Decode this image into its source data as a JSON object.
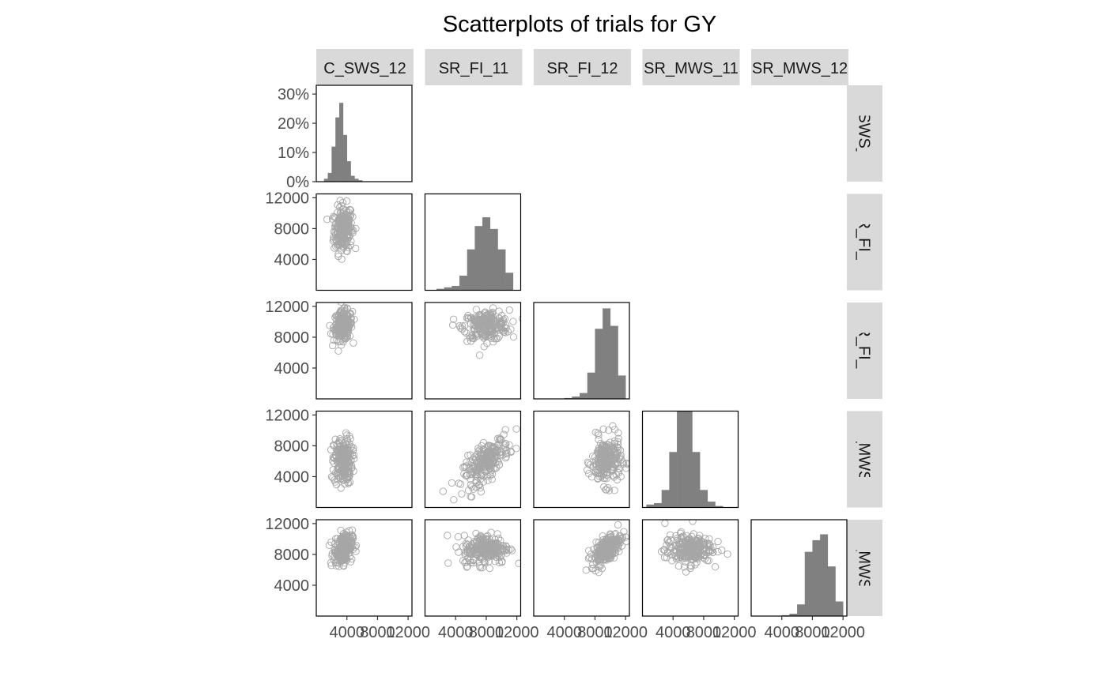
{
  "chart_data": {
    "type": "scatter",
    "title": "Scatterplots of trials for GY",
    "trials": [
      "C_SWS_12",
      "SR_FI_11",
      "SR_FI_12",
      "SR_MWS_11",
      "SR_MWS_12"
    ],
    "x_tick_labels": [
      "4000",
      "8000",
      "12000"
    ],
    "y_tick_labels": [
      "4000",
      "8000",
      "12000"
    ],
    "hist_y_tick_labels": [
      "0%",
      "10%",
      "20%",
      "30%"
    ],
    "xlim": [
      0,
      12500
    ],
    "ylim": [
      0,
      12500
    ],
    "hist_ylim": [
      0,
      0.33
    ],
    "grid": false,
    "point_color": "#a6a6a6",
    "hist_color": "#808080",
    "strip_color": "#d9d9d9",
    "distributions": [
      {
        "trial": "C_SWS_12",
        "mean": 3500,
        "sd": 600
      },
      {
        "trial": "SR_FI_11",
        "mean": 8000,
        "sd": 1500
      },
      {
        "trial": "SR_FI_12",
        "mean": 9500,
        "sd": 950
      },
      {
        "trial": "SR_MWS_11",
        "mean": 6000,
        "sd": 1550
      },
      {
        "trial": "SR_MWS_12",
        "mean": 8700,
        "sd": 1000
      }
    ],
    "histograms": [
      {
        "trial": "C_SWS_12",
        "bins": [
          1250,
          1750,
          2250,
          2750,
          3250,
          3750,
          4250,
          4750,
          5250,
          5750
        ],
        "share": [
          0.01,
          0.03,
          0.12,
          0.22,
          0.27,
          0.16,
          0.07,
          0.02,
          0.01,
          0.005
        ]
      },
      {
        "trial": "SR_FI_11",
        "bins": [
          2000,
          3000,
          4000,
          5000,
          6000,
          7000,
          8000,
          9000,
          10000,
          11000
        ],
        "share": [
          0.005,
          0.01,
          0.015,
          0.05,
          0.14,
          0.22,
          0.25,
          0.21,
          0.14,
          0.06
        ]
      },
      {
        "trial": "SR_FI_12",
        "bins": [
          4500,
          5500,
          6500,
          7500,
          8500,
          9500,
          10500,
          11500
        ],
        "share": [
          0.003,
          0.008,
          0.02,
          0.09,
          0.24,
          0.31,
          0.25,
          0.08
        ]
      },
      {
        "trial": "SR_MWS_11",
        "bins": [
          1000,
          2000,
          3000,
          4000,
          5000,
          6000,
          7000,
          8000,
          9000,
          10000
        ],
        "share": [
          0.01,
          0.015,
          0.06,
          0.19,
          0.36,
          0.37,
          0.19,
          0.06,
          0.02,
          0.005
        ]
      },
      {
        "trial": "SR_MWS_12",
        "bins": [
          4500,
          5500,
          6500,
          7500,
          8500,
          9500,
          10500,
          11500
        ],
        "share": [
          0.003,
          0.008,
          0.04,
          0.22,
          0.26,
          0.28,
          0.17,
          0.05
        ]
      }
    ],
    "correlations": [
      {
        "x": "C_SWS_12",
        "y": "SR_FI_11",
        "r": 0.1
      },
      {
        "x": "C_SWS_12",
        "y": "SR_FI_12",
        "r": 0.08
      },
      {
        "x": "SR_FI_11",
        "y": "SR_FI_12",
        "r": 0.05
      },
      {
        "x": "C_SWS_12",
        "y": "SR_MWS_11",
        "r": 0.05
      },
      {
        "x": "SR_FI_11",
        "y": "SR_MWS_11",
        "r": 0.7
      },
      {
        "x": "SR_FI_12",
        "y": "SR_MWS_11",
        "r": 0.05
      },
      {
        "x": "C_SWS_12",
        "y": "SR_MWS_12",
        "r": 0.25
      },
      {
        "x": "SR_FI_11",
        "y": "SR_MWS_12",
        "r": 0.1
      },
      {
        "x": "SR_FI_12",
        "y": "SR_MWS_12",
        "r": 0.6
      },
      {
        "x": "SR_MWS_11",
        "y": "SR_MWS_12",
        "r": 0.1
      }
    ]
  }
}
